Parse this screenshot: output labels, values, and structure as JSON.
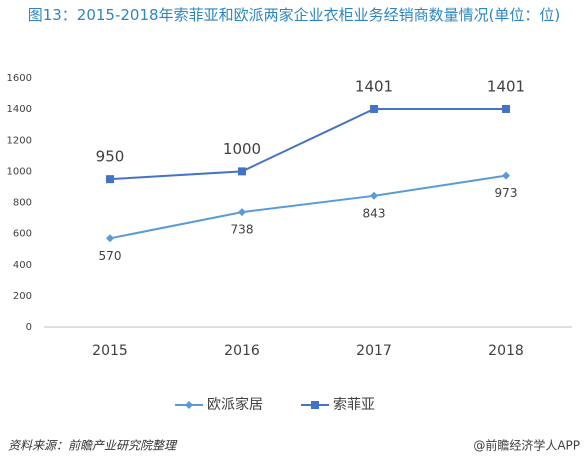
{
  "chart_data": {
    "type": "line",
    "title": "图13：2015-2018年索菲亚和欧派两家企业衣柜业务经销商数量情况(单位：位)",
    "categories": [
      "2015",
      "2016",
      "2017",
      "2018"
    ],
    "series": [
      {
        "name": "欧派家居",
        "color": "#5b9bd5",
        "marker": "diamond",
        "label_position": "below",
        "values": [
          570,
          738,
          843,
          973
        ]
      },
      {
        "name": "索菲亚",
        "color": "#4472c4",
        "marker": "square",
        "label_position": "above",
        "values": [
          950,
          1000,
          1401,
          1401
        ]
      }
    ],
    "ylim": [
      0,
      1600
    ],
    "yticks": [
      0,
      200,
      400,
      600,
      800,
      1000,
      1200,
      1400,
      1600
    ],
    "grid": false,
    "legend": "bottom"
  },
  "footer": {
    "source": "资料来源：前瞻产业研究院整理",
    "credit": "@前瞻经济学人APP"
  }
}
